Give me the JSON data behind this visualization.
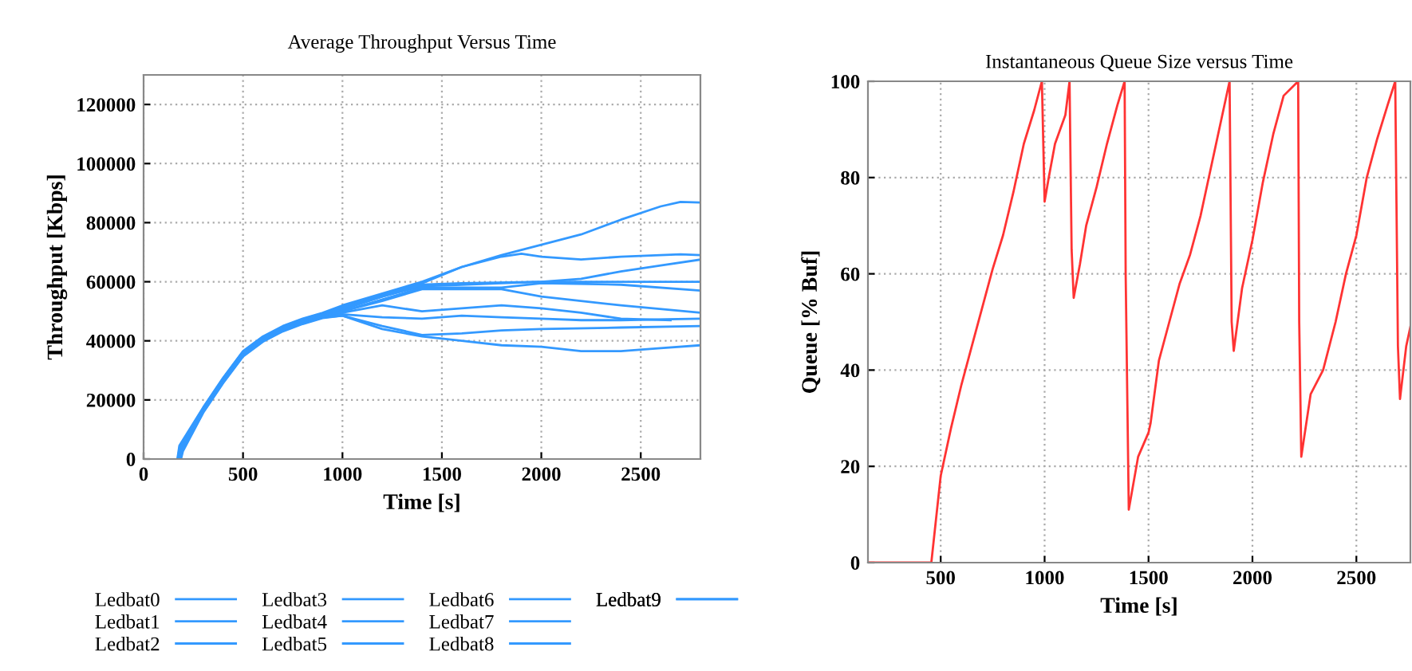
{
  "chart_data": [
    {
      "type": "line",
      "title": "Average Throughput Versus Time",
      "xlabel": "Time [s]",
      "ylabel": "Throughput [Kbps]",
      "xlim": [
        0,
        2800
      ],
      "xticks": [
        0,
        500,
        1000,
        1500,
        2000,
        2500
      ],
      "ylim": [
        0,
        130000
      ],
      "yticks": [
        0,
        20000,
        40000,
        60000,
        80000,
        100000,
        120000
      ],
      "grid": true,
      "legend": "bottom",
      "line_style": "solid",
      "marker": "none",
      "series": [
        {
          "name": "Ledbat0",
          "color": "#3399ff",
          "x": [
            170,
            180,
            300,
            400,
            500,
            600,
            700,
            800,
            900,
            1000,
            1200,
            1400,
            1600,
            1800,
            2000,
            2200,
            2400,
            2600,
            2700,
            2800
          ],
          "values": [
            0,
            4500,
            17500,
            27500,
            36500,
            41500,
            45000,
            47500,
            49500,
            52000,
            56000,
            60000,
            65000,
            69000,
            72500,
            76000,
            81000,
            85500,
            87000,
            86800
          ]
        },
        {
          "name": "Ledbat1",
          "color": "#3399ff",
          "x": [
            172,
            182,
            300,
            400,
            500,
            600,
            700,
            800,
            900,
            1000,
            1200,
            1400,
            1600,
            1800,
            1900,
            2000,
            2200,
            2400,
            2700,
            2800
          ],
          "values": [
            0,
            4300,
            17300,
            27300,
            36300,
            41300,
            44800,
            47300,
            49300,
            51500,
            55500,
            59500,
            65000,
            68500,
            69500,
            68500,
            67500,
            68500,
            69300,
            69000
          ]
        },
        {
          "name": "Ledbat2",
          "color": "#3399ff",
          "x": [
            174,
            184,
            300,
            400,
            500,
            600,
            700,
            800,
            900,
            1000,
            1200,
            1400,
            1600,
            1800,
            2000,
            2200,
            2400,
            2600,
            2800
          ],
          "values": [
            0,
            4100,
            17100,
            27100,
            36100,
            41100,
            44600,
            47100,
            49100,
            51000,
            55000,
            58500,
            59000,
            59500,
            60000,
            61000,
            63500,
            65500,
            67500
          ]
        },
        {
          "name": "Ledbat3",
          "color": "#3399ff",
          "x": [
            176,
            186,
            300,
            400,
            500,
            600,
            700,
            800,
            900,
            1000,
            1200,
            1400,
            1600,
            2000,
            2400,
            2800
          ],
          "values": [
            0,
            3900,
            16900,
            26900,
            35900,
            40900,
            44400,
            46900,
            48900,
            50500,
            55000,
            59000,
            59500,
            60000,
            60000,
            60000
          ]
        },
        {
          "name": "Ledbat4",
          "color": "#3399ff",
          "x": [
            178,
            188,
            300,
            400,
            500,
            600,
            700,
            800,
            900,
            1000,
            1200,
            1400,
            1800,
            2000,
            2400,
            2800
          ],
          "values": [
            0,
            3700,
            16700,
            26700,
            35700,
            40700,
            44200,
            46700,
            48700,
            50000,
            54000,
            58000,
            58000,
            59500,
            59000,
            57000
          ]
        },
        {
          "name": "Ledbat5",
          "color": "#3399ff",
          "x": [
            180,
            190,
            300,
            400,
            500,
            600,
            700,
            800,
            900,
            1000,
            1200,
            1400,
            1800,
            2000,
            2400,
            2800
          ],
          "values": [
            0,
            3500,
            16500,
            26500,
            35500,
            40500,
            44000,
            46500,
            48500,
            50000,
            53500,
            57500,
            57500,
            55000,
            52000,
            49500
          ]
        },
        {
          "name": "Ledbat6",
          "color": "#3399ff",
          "x": [
            182,
            192,
            300,
            400,
            500,
            600,
            700,
            800,
            900,
            1000,
            1200,
            1400,
            1600,
            1800,
            2000,
            2200,
            2400,
            2650
          ],
          "values": [
            0,
            3300,
            16300,
            26300,
            35300,
            40300,
            43800,
            46300,
            48300,
            49500,
            52000,
            50000,
            51000,
            52000,
            51000,
            49500,
            47500,
            47000
          ]
        },
        {
          "name": "Ledbat7",
          "color": "#3399ff",
          "x": [
            184,
            194,
            300,
            400,
            500,
            600,
            700,
            800,
            900,
            1000,
            1200,
            1400,
            1600,
            1800,
            2000,
            2200,
            2400,
            2800
          ],
          "values": [
            0,
            3100,
            16100,
            26100,
            35100,
            40100,
            43600,
            46100,
            48100,
            49000,
            48000,
            47500,
            48500,
            48000,
            47500,
            47000,
            47000,
            47500
          ]
        },
        {
          "name": "Ledbat8",
          "color": "#3399ff",
          "x": [
            186,
            196,
            300,
            400,
            500,
            600,
            700,
            800,
            900,
            1000,
            1200,
            1400,
            1600,
            1800,
            2000,
            2400,
            2800
          ],
          "values": [
            0,
            2900,
            15900,
            25900,
            34900,
            39900,
            43400,
            45900,
            47900,
            48500,
            45000,
            42000,
            42500,
            43500,
            44000,
            44500,
            45000
          ]
        },
        {
          "name": "Ledbat9",
          "color": "#3399ff",
          "x": [
            188,
            198,
            300,
            400,
            500,
            600,
            700,
            800,
            900,
            1000,
            1200,
            1400,
            1600,
            1800,
            2000,
            2200,
            2400,
            2600,
            2800
          ],
          "values": [
            0,
            2700,
            15700,
            25700,
            34700,
            39700,
            43200,
            45700,
            47700,
            48500,
            44000,
            41500,
            40000,
            38500,
            38000,
            36500,
            36500,
            37500,
            38500
          ]
        }
      ]
    },
    {
      "type": "line",
      "title": "Instantaneous Queue Size versus Time",
      "xlabel": "Time [s]",
      "ylabel": "Queue [% Buf]",
      "xlim": [
        150,
        2760
      ],
      "xticks": [
        500,
        1000,
        1500,
        2000,
        2500
      ],
      "ylim": [
        0,
        100
      ],
      "yticks": [
        0,
        20,
        40,
        60,
        80,
        100
      ],
      "grid": true,
      "legend": false,
      "line_style": "solid",
      "marker": "none",
      "series": [
        {
          "color": "#ff3333",
          "x": [
            150,
            455,
            500,
            550,
            600,
            650,
            700,
            750,
            800,
            850,
            900,
            950,
            987,
            1000,
            1020,
            1050,
            1100,
            1120,
            1130,
            1140,
            1170,
            1200,
            1250,
            1300,
            1350,
            1385,
            1390,
            1405,
            1450,
            1500,
            1510,
            1550,
            1600,
            1650,
            1700,
            1750,
            1800,
            1850,
            1890,
            1900,
            1910,
            1950,
            2000,
            2050,
            2100,
            2150,
            2220,
            2225,
            2235,
            2280,
            2340,
            2400,
            2450,
            2500,
            2550,
            2600,
            2650,
            2687,
            2700,
            2710,
            2740,
            2760
          ],
          "values": [
            0,
            0,
            18,
            28,
            37,
            45,
            53,
            61,
            68,
            77,
            87,
            94,
            100,
            75,
            80,
            87,
            93,
            100,
            65,
            55,
            62,
            70,
            78,
            87,
            95,
            100,
            60,
            11,
            22,
            27,
            29,
            42,
            50,
            58,
            64,
            72,
            82,
            92,
            100,
            50,
            44,
            57,
            67,
            79,
            89,
            97,
            100,
            50,
            22,
            35,
            40,
            50,
            60,
            68,
            80,
            88,
            95,
            100,
            45,
            34,
            45,
            49
          ]
        }
      ]
    }
  ]
}
